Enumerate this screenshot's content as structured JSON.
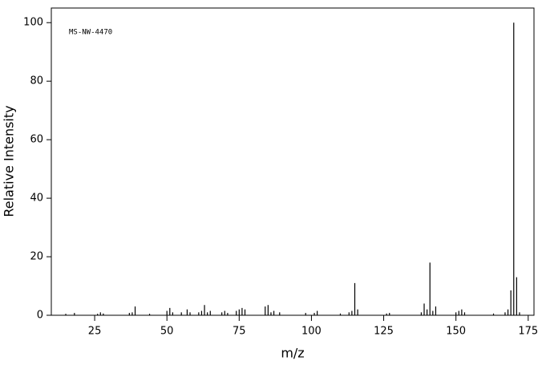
{
  "chart_data": {
    "type": "stem",
    "annotation": "MS-NW-4470",
    "x_label": "m/z",
    "y_label": "Relative Intensity",
    "x": [
      15,
      18,
      26,
      27,
      28,
      37,
      38,
      39,
      44,
      50,
      51,
      52,
      55,
      57,
      58,
      61,
      62,
      63,
      64,
      65,
      69,
      70,
      71,
      74,
      75,
      76,
      77,
      84,
      85,
      86,
      87,
      89,
      98,
      101,
      102,
      110,
      113,
      114,
      115,
      116,
      126,
      127,
      138,
      139,
      140,
      141,
      142,
      143,
      150,
      151,
      152,
      153,
      163,
      167,
      168,
      169,
      170,
      171,
      172
    ],
    "series": [
      {
        "name": "intensity",
        "color": "#000000",
        "values": [
          0.5,
          0.8,
          0.5,
          1,
          0.6,
          0.8,
          1,
          3,
          0.5,
          1.5,
          2.5,
          1,
          1,
          2,
          1,
          1,
          1.5,
          3.5,
          1,
          1.5,
          1,
          1.5,
          0.8,
          1.5,
          2,
          2.5,
          2,
          3,
          3.5,
          1,
          1.5,
          1,
          0.8,
          0.8,
          1.5,
          0.6,
          1,
          1.5,
          11,
          2,
          0.6,
          0.8,
          1,
          4,
          2,
          18,
          1.5,
          3,
          1,
          1.5,
          2,
          1,
          0.6,
          1,
          2,
          8.5,
          100,
          13,
          1
        ]
      }
    ],
    "xlim": [
      10,
      177
    ],
    "ylim": [
      0,
      105
    ],
    "xticks": [
      25,
      50,
      75,
      100,
      125,
      150,
      175
    ],
    "yticks": [
      0,
      20,
      40,
      60,
      80,
      100
    ]
  }
}
